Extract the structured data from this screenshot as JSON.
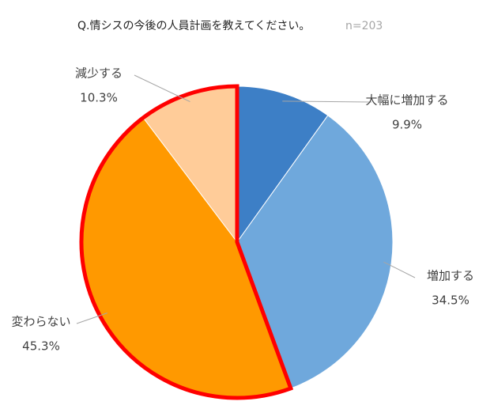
{
  "chart_data": {
    "type": "pie",
    "title": "Q.情シスの今後の人員計画を教えてください。",
    "subtitle": "n=203",
    "categories": [
      "大幅に増加する",
      "増加する",
      "変わらない",
      "減少する"
    ],
    "values": [
      9.9,
      34.5,
      45.3,
      10.3
    ],
    "value_labels": [
      "9.9%",
      "34.5%",
      "45.3%",
      "10.3%"
    ],
    "colors": [
      "#3d7fc6",
      "#6fa8dc",
      "#ff9900",
      "#ffcc99"
    ],
    "highlight_indices": [
      2,
      3
    ],
    "highlight_color": "#ff0000"
  }
}
